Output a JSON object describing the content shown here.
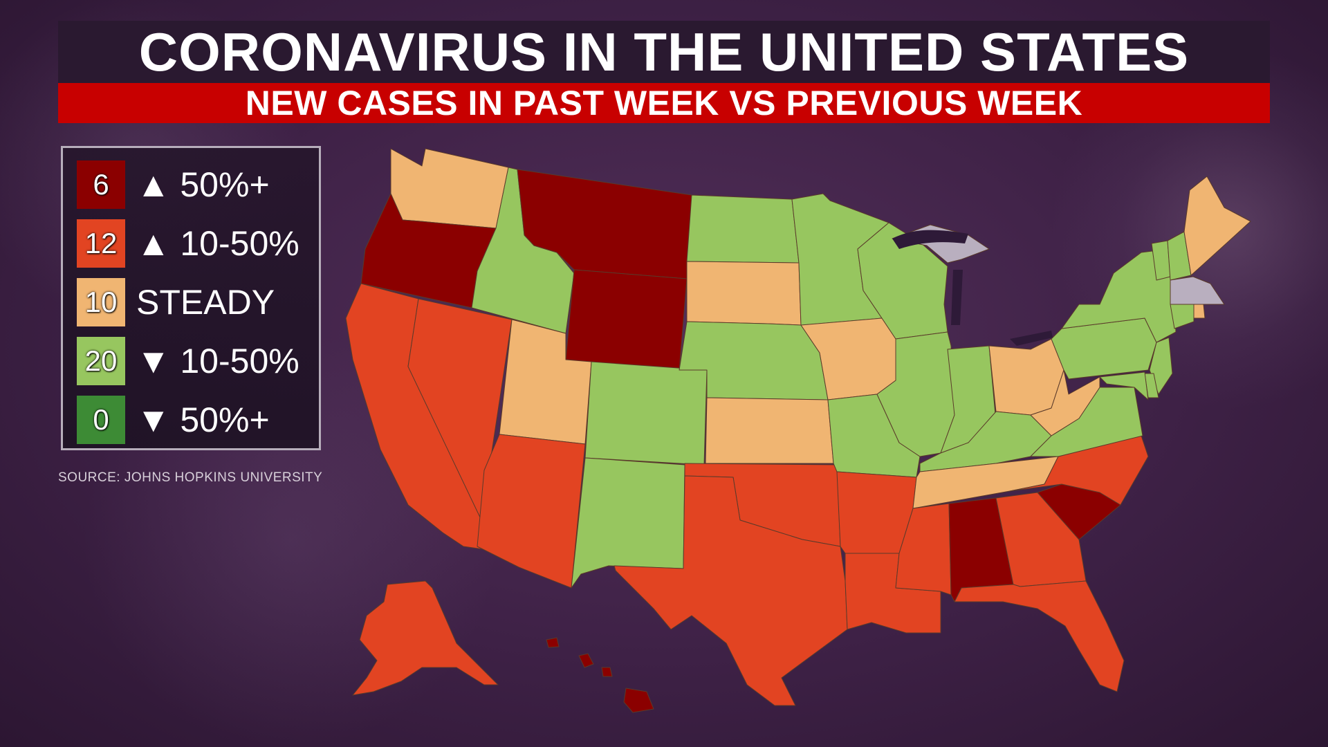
{
  "title": "CORONAVIRUS IN THE UNITED STATES",
  "subtitle": "NEW CASES IN PAST WEEK VS PREVIOUS WEEK",
  "source": "SOURCE: JOHNS HOPKINS UNIVERSITY",
  "legend": [
    {
      "count": "6",
      "label": "▲ 50%+",
      "color": "#8b0000"
    },
    {
      "count": "12",
      "label": "▲ 10-50%",
      "color": "#e24422"
    },
    {
      "count": "10",
      "label": "STEADY",
      "color": "#f0b572"
    },
    {
      "count": "20",
      "label": "▼ 10-50%",
      "color": "#97c65f"
    },
    {
      "count": "0",
      "label": "▼ 50%+",
      "color": "#3d8b35"
    }
  ],
  "no_data_color": "#b9afbf",
  "states": {
    "WA": "steady",
    "OR": "up50",
    "CA": "up10_50",
    "NV": "up10_50",
    "ID": "down10_50",
    "MT": "up50",
    "WY": "up50",
    "UT": "steady",
    "AZ": "up10_50",
    "CO": "down10_50",
    "NM": "down10_50",
    "ND": "down10_50",
    "SD": "steady",
    "NE": "down10_50",
    "KS": "steady",
    "OK": "up10_50",
    "TX": "up10_50",
    "MN": "down10_50",
    "IA": "steady",
    "MO": "down10_50",
    "AR": "up10_50",
    "LA": "up10_50",
    "WI": "down10_50",
    "IL": "down10_50",
    "MI": "no_data",
    "IN": "down10_50",
    "OH": "steady",
    "KY": "down10_50",
    "TN": "steady",
    "MS": "up10_50",
    "AL": "up50",
    "GA": "up10_50",
    "FL": "up10_50",
    "SC": "up50",
    "NC": "up10_50",
    "VA": "down10_50",
    "WV": "steady",
    "PA": "down10_50",
    "NY": "down10_50",
    "VT": "down10_50",
    "NH": "down10_50",
    "ME": "steady",
    "MA": "no_data",
    "RI": "steady",
    "CT": "down10_50",
    "NJ": "down10_50",
    "DE": "down10_50",
    "MD": "down10_50",
    "AK": "up10_50",
    "HI": "up50"
  }
}
